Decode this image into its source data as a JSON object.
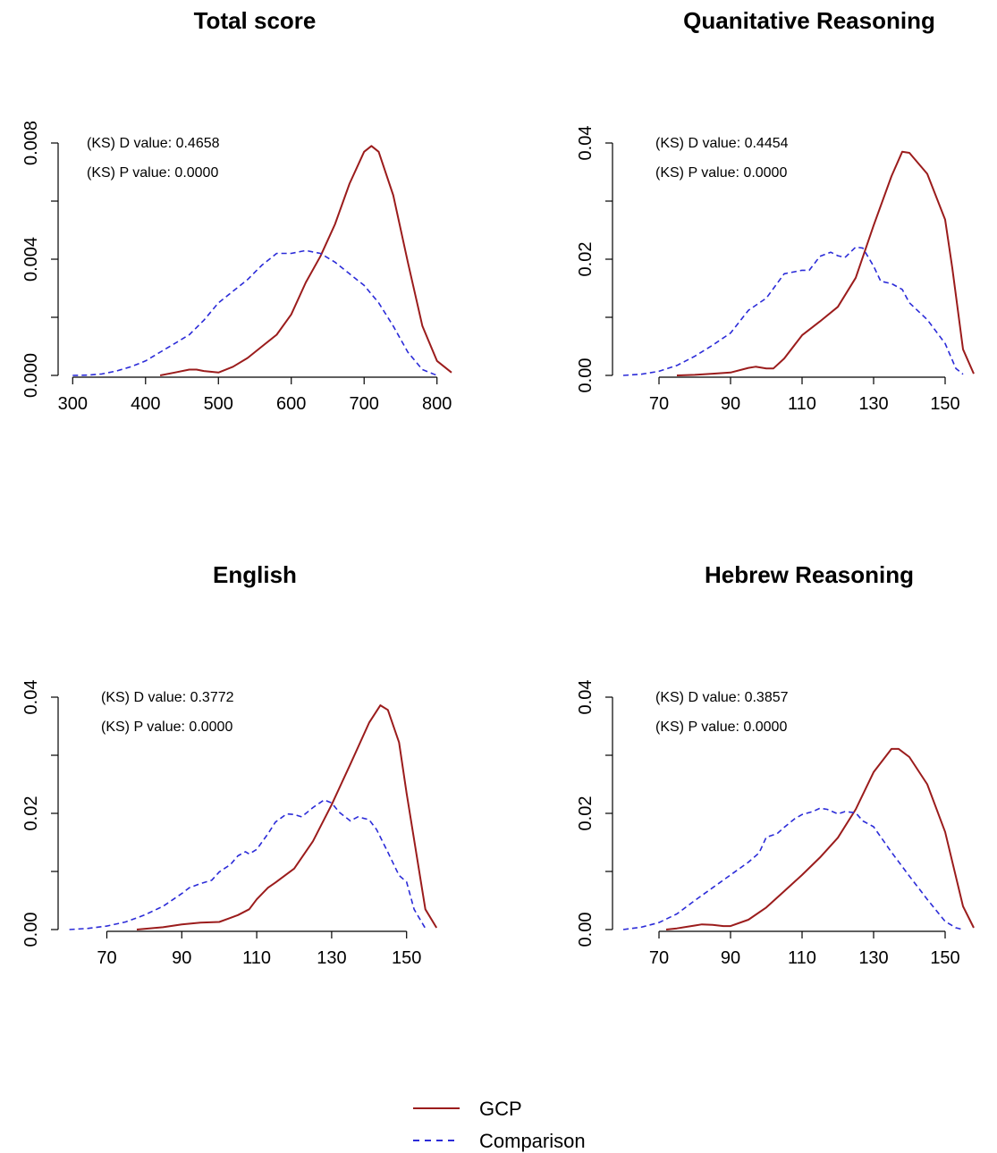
{
  "legend": [
    {
      "name": "GCP",
      "color": "#9b1c1c",
      "style": "solid"
    },
    {
      "name": "Comparison",
      "color": "#2b2bd8",
      "style": "dashed"
    }
  ],
  "chart_data": [
    {
      "type": "line",
      "title": "Total score",
      "xlim": [
        280,
        820
      ],
      "ylim": [
        0,
        0.01
      ],
      "xticks": [
        300,
        400,
        500,
        600,
        700,
        800
      ],
      "xtick_labels": [
        "300",
        "400",
        "500",
        "600",
        "700",
        "800"
      ],
      "yticks": [
        0,
        0.002,
        0.004,
        0.006,
        0.008
      ],
      "ytick_labels": [
        "0.000",
        "",
        "0.004",
        "",
        "0.008"
      ],
      "annotations": [
        "(KS) D value: 0.4658",
        "(KS) P value: 0.0000"
      ],
      "series": [
        {
          "name": "GCP",
          "x": [
            420,
            440,
            460,
            470,
            480,
            500,
            520,
            540,
            560,
            580,
            600,
            620,
            640,
            660,
            680,
            700,
            710,
            720,
            740,
            760,
            780,
            800,
            820
          ],
          "y": [
            0,
            0.0001,
            0.0002,
            0.0002,
            0.00015,
            0.0001,
            0.0003,
            0.0006,
            0.001,
            0.0014,
            0.0021,
            0.0032,
            0.0041,
            0.0052,
            0.0066,
            0.0077,
            0.0079,
            0.0077,
            0.0062,
            0.0039,
            0.0017,
            0.0005,
            0.0001
          ]
        },
        {
          "name": "Comparison",
          "x": [
            300,
            320,
            340,
            360,
            380,
            400,
            420,
            440,
            460,
            480,
            500,
            520,
            540,
            560,
            580,
            600,
            620,
            640,
            660,
            680,
            700,
            720,
            740,
            760,
            780,
            800
          ],
          "y": [
            0,
            1e-05,
            5e-05,
            0.00015,
            0.0003,
            0.0005,
            0.0008,
            0.0011,
            0.0014,
            0.0019,
            0.0025,
            0.0029,
            0.0033,
            0.0038,
            0.0042,
            0.0042,
            0.0043,
            0.0042,
            0.0039,
            0.0035,
            0.0031,
            0.0025,
            0.0017,
            0.0008,
            0.0002,
            0
          ]
        }
      ]
    },
    {
      "type": "line",
      "title": "Quanitative Reasoning",
      "xlim": [
        57,
        162
      ],
      "ylim": [
        0,
        0.05
      ],
      "xticks": [
        70,
        90,
        110,
        130,
        150
      ],
      "xtick_labels": [
        "70",
        "90",
        "110",
        "130",
        "150"
      ],
      "yticks": [
        0,
        0.01,
        0.02,
        0.03,
        0.04
      ],
      "ytick_labels": [
        "0.00",
        "",
        "0.02",
        "",
        "0.04"
      ],
      "annotations": [
        "(KS) D value: 0.4454",
        "(KS) P value: 0.0000"
      ],
      "series": [
        {
          "name": "GCP",
          "x": [
            75,
            80,
            85,
            90,
            95,
            97,
            100,
            102,
            105,
            110,
            115,
            120,
            125,
            130,
            135,
            138,
            140,
            145,
            150,
            152,
            155,
            158
          ],
          "y": [
            0,
            0.0001,
            0.0003,
            0.0005,
            0.0013,
            0.0015,
            0.0012,
            0.0012,
            0.0029,
            0.0069,
            0.0093,
            0.0118,
            0.0168,
            0.0258,
            0.0343,
            0.0385,
            0.0383,
            0.0347,
            0.0268,
            0.0185,
            0.0045,
            0.0003
          ]
        },
        {
          "name": "Comparison",
          "x": [
            60,
            65,
            70,
            75,
            80,
            85,
            90,
            95,
            100,
            105,
            110,
            112,
            115,
            118,
            120,
            122,
            125,
            127,
            130,
            132,
            135,
            138,
            140,
            145,
            150,
            153,
            155
          ],
          "y": [
            0,
            0.0002,
            0.0007,
            0.0017,
            0.0033,
            0.0052,
            0.0073,
            0.0112,
            0.0133,
            0.0175,
            0.0181,
            0.0181,
            0.0205,
            0.0212,
            0.0206,
            0.0203,
            0.0221,
            0.0219,
            0.0188,
            0.0162,
            0.0158,
            0.0148,
            0.0125,
            0.0096,
            0.0055,
            0.0012,
            0.0002
          ]
        }
      ]
    },
    {
      "type": "line",
      "title": "English",
      "xlim": [
        57,
        162
      ],
      "ylim": [
        0,
        0.05
      ],
      "xticks": [
        70,
        90,
        110,
        130,
        150
      ],
      "xtick_labels": [
        "70",
        "90",
        "110",
        "130",
        "150"
      ],
      "yticks": [
        0,
        0.01,
        0.02,
        0.03,
        0.04
      ],
      "ytick_labels": [
        "0.00",
        "",
        "0.02",
        "",
        "0.04"
      ],
      "annotations": [
        "(KS) D value: 0.3772",
        "(KS) P value: 0.0000"
      ],
      "series": [
        {
          "name": "GCP",
          "x": [
            78,
            85,
            90,
            95,
            100,
            105,
            108,
            110,
            113,
            115,
            120,
            125,
            130,
            135,
            140,
            143,
            145,
            148,
            150,
            153,
            155,
            158
          ],
          "y": [
            0,
            0.0004,
            0.0009,
            0.0012,
            0.0013,
            0.0025,
            0.0035,
            0.0052,
            0.0072,
            0.0081,
            0.0105,
            0.0152,
            0.0215,
            0.0285,
            0.0356,
            0.0386,
            0.0378,
            0.0322,
            0.0235,
            0.0115,
            0.0035,
            0.0003
          ]
        },
        {
          "name": "Comparison",
          "x": [
            60,
            65,
            70,
            75,
            80,
            85,
            90,
            92,
            95,
            98,
            100,
            103,
            105,
            107,
            108,
            110,
            113,
            115,
            118,
            120,
            122,
            125,
            128,
            130,
            132,
            135,
            137,
            140,
            142,
            145,
            148,
            150,
            152,
            155
          ],
          "y": [
            0,
            0.0002,
            0.0006,
            0.0013,
            0.0025,
            0.004,
            0.0062,
            0.0072,
            0.0079,
            0.0085,
            0.0099,
            0.0112,
            0.0127,
            0.0134,
            0.013,
            0.0138,
            0.0165,
            0.0185,
            0.0199,
            0.0198,
            0.0194,
            0.021,
            0.0223,
            0.0218,
            0.0202,
            0.0187,
            0.0194,
            0.0189,
            0.0172,
            0.0133,
            0.0093,
            0.0082,
            0.0035,
            0.0002
          ]
        }
      ]
    },
    {
      "type": "line",
      "title": "Hebrew Reasoning",
      "xlim": [
        57,
        162
      ],
      "ylim": [
        0,
        0.05
      ],
      "xticks": [
        70,
        90,
        110,
        130,
        150
      ],
      "xtick_labels": [
        "70",
        "90",
        "110",
        "130",
        "150"
      ],
      "yticks": [
        0,
        0.01,
        0.02,
        0.03,
        0.04
      ],
      "ytick_labels": [
        "0.00",
        "",
        "0.02",
        "",
        "0.04"
      ],
      "annotations": [
        "(KS) D value: 0.3857",
        "(KS) P value: 0.0000"
      ],
      "series": [
        {
          "name": "GCP",
          "x": [
            72,
            75,
            80,
            82,
            85,
            88,
            90,
            95,
            100,
            105,
            110,
            115,
            120,
            125,
            130,
            135,
            137,
            140,
            145,
            150,
            155,
            158
          ],
          "y": [
            0,
            0.0002,
            0.0007,
            0.0009,
            0.0008,
            0.0006,
            0.0006,
            0.0017,
            0.0038,
            0.0066,
            0.0094,
            0.0124,
            0.0158,
            0.0207,
            0.0271,
            0.0311,
            0.0311,
            0.0297,
            0.025,
            0.0168,
            0.004,
            0.0003
          ]
        },
        {
          "name": "Comparison",
          "x": [
            60,
            65,
            70,
            75,
            80,
            85,
            90,
            95,
            98,
            100,
            103,
            105,
            108,
            110,
            113,
            115,
            117,
            120,
            122,
            125,
            127,
            130,
            135,
            140,
            145,
            150,
            153,
            155
          ],
          "y": [
            0,
            0.0004,
            0.0012,
            0.0027,
            0.005,
            0.0072,
            0.0094,
            0.0116,
            0.0132,
            0.0159,
            0.0165,
            0.0176,
            0.0191,
            0.0198,
            0.0203,
            0.0209,
            0.0207,
            0.0199,
            0.0203,
            0.0201,
            0.0187,
            0.0177,
            0.0133,
            0.0092,
            0.0052,
            0.0014,
            0.0003,
            0
          ]
        }
      ]
    }
  ]
}
